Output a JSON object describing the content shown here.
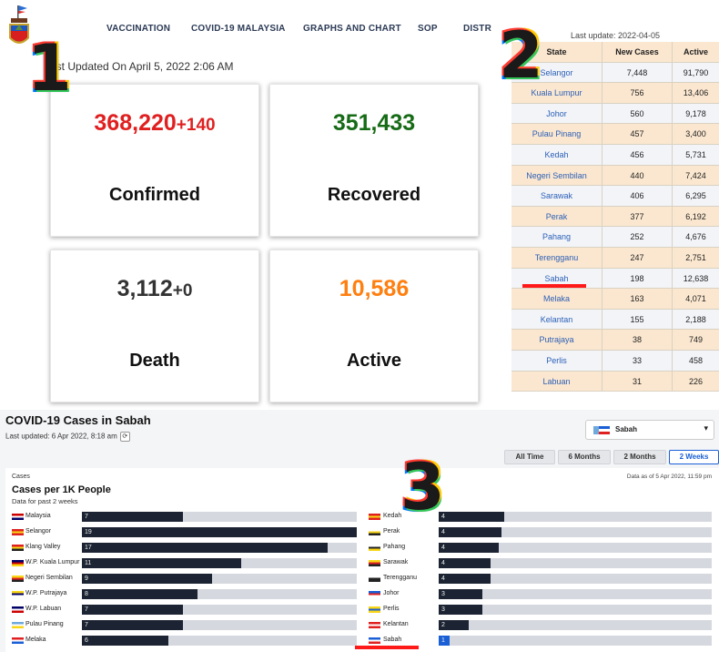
{
  "panel1": {
    "nav": [
      "VACCINATION",
      "COVID-19 MALAYSIA",
      "GRAPHS AND CHART",
      "SOP",
      "DISTR"
    ],
    "last_updated": "ast Updated On April 5, 2022 2:06 AM",
    "cards": [
      {
        "value": "368,220",
        "delta": "+140",
        "label": "Confirmed",
        "color": "#e02020"
      },
      {
        "value": "351,433",
        "delta": "",
        "label": "Recovered",
        "color": "#166b16"
      },
      {
        "value": "3,112",
        "delta": "+0",
        "label": "Death",
        "color": "#333333"
      },
      {
        "value": "10,586",
        "delta": "",
        "label": "Active",
        "color": "#ff7f10"
      }
    ],
    "badge": "1"
  },
  "panel2": {
    "badge": "2",
    "last_update": "Last update: 2022-04-05",
    "headers": [
      "State",
      "New Cases",
      "Active"
    ],
    "rows": [
      [
        "Selangor",
        "7,448",
        "91,790"
      ],
      [
        "Kuala Lumpur",
        "756",
        "13,406"
      ],
      [
        "Johor",
        "560",
        "9,178"
      ],
      [
        "Pulau Pinang",
        "457",
        "3,400"
      ],
      [
        "Kedah",
        "456",
        "5,731"
      ],
      [
        "Negeri Sembilan",
        "440",
        "7,424"
      ],
      [
        "Sarawak",
        "406",
        "6,295"
      ],
      [
        "Perak",
        "377",
        "6,192"
      ],
      [
        "Pahang",
        "252",
        "4,676"
      ],
      [
        "Terengganu",
        "247",
        "2,751"
      ],
      [
        "Sabah",
        "198",
        "12,638"
      ],
      [
        "Melaka",
        "163",
        "4,071"
      ],
      [
        "Kelantan",
        "155",
        "2,188"
      ],
      [
        "Putrajaya",
        "38",
        "749"
      ],
      [
        "Perlis",
        "33",
        "458"
      ],
      [
        "Labuan",
        "31",
        "226"
      ]
    ],
    "highlight_color": "#ff1a1a"
  },
  "panel3": {
    "badge": "3",
    "title": "COVID-19 Cases in Sabah",
    "last_updated": "Last updated: 6 Apr 2022, 8:18 am",
    "refresh_glyph": "⟳",
    "selector": {
      "value": "Sabah",
      "caret": "▾"
    },
    "ranges": [
      "All Time",
      "6 Months",
      "2 Months",
      "2 Weeks"
    ],
    "active_range": "2 Weeks",
    "cases_label": "Cases",
    "heading": "Cases per 1K People",
    "sub": "Data for past 2 weeks",
    "as_of": "Data as of 5 Apr 2022, 11:59 pm",
    "left_bars": [
      {
        "label": "Malaysia",
        "value": 7
      },
      {
        "label": "Selangor",
        "value": 19
      },
      {
        "label": "Klang Valley",
        "value": 17
      },
      {
        "label": "W.P. Kuala Lumpur",
        "value": 11
      },
      {
        "label": "Negeri Sembilan",
        "value": 9
      },
      {
        "label": "W.P. Putrajaya",
        "value": 8
      },
      {
        "label": "W.P. Labuan",
        "value": 7
      },
      {
        "label": "Pulau Pinang",
        "value": 7
      },
      {
        "label": "Melaka",
        "value": 6
      }
    ],
    "right_bars": [
      {
        "label": "Kedah",
        "value": 4,
        "fill": 0.24
      },
      {
        "label": "Perak",
        "value": 4,
        "fill": 0.23
      },
      {
        "label": "Pahang",
        "value": 4,
        "fill": 0.22
      },
      {
        "label": "Sarawak",
        "value": 4,
        "fill": 0.19
      },
      {
        "label": "Terengganu",
        "value": 4,
        "fill": 0.19
      },
      {
        "label": "Johor",
        "value": 3,
        "fill": 0.16
      },
      {
        "label": "Perlis",
        "value": 3,
        "fill": 0.16
      },
      {
        "label": "Kelantan",
        "value": 2,
        "fill": 0.11
      },
      {
        "label": "Sabah",
        "value": 1,
        "fill": 0.04,
        "highlight": true
      }
    ],
    "scale_max": 19,
    "colors": {
      "bar": "#1c2433",
      "track": "#d5d8de",
      "highlight": "#1a5fd6",
      "underline": "#ff1a1a"
    }
  }
}
